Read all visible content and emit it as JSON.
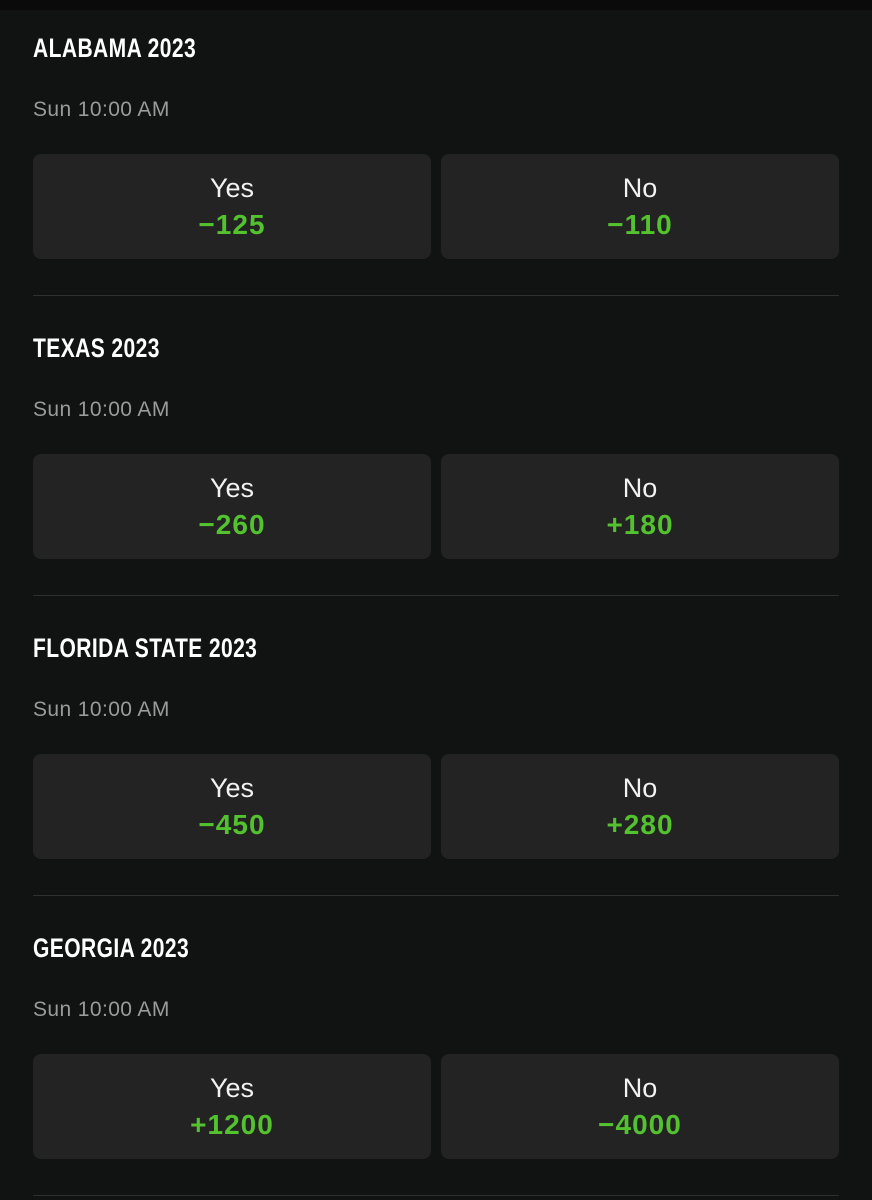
{
  "colors": {
    "background": "#111212",
    "top_strip": "#0a0a0a",
    "button_bg": "#232323",
    "divider": "#2f2f2f",
    "title_text": "#ffffff",
    "time_text": "#9a9a9a",
    "label_text": "#f2f2f2",
    "odds_green": "#53c22e"
  },
  "events": [
    {
      "title": "ALABAMA 2023",
      "time": "Sun 10:00 AM",
      "outcomes": [
        {
          "label": "Yes",
          "odds": "−125"
        },
        {
          "label": "No",
          "odds": "−110"
        }
      ]
    },
    {
      "title": "TEXAS 2023",
      "time": "Sun 10:00 AM",
      "outcomes": [
        {
          "label": "Yes",
          "odds": "−260"
        },
        {
          "label": "No",
          "odds": "+180"
        }
      ]
    },
    {
      "title": "FLORIDA STATE 2023",
      "time": "Sun 10:00 AM",
      "outcomes": [
        {
          "label": "Yes",
          "odds": "−450"
        },
        {
          "label": "No",
          "odds": "+280"
        }
      ]
    },
    {
      "title": "GEORGIA 2023",
      "time": "Sun 10:00 AM",
      "outcomes": [
        {
          "label": "Yes",
          "odds": "+1200"
        },
        {
          "label": "No",
          "odds": "−4000"
        }
      ]
    }
  ]
}
